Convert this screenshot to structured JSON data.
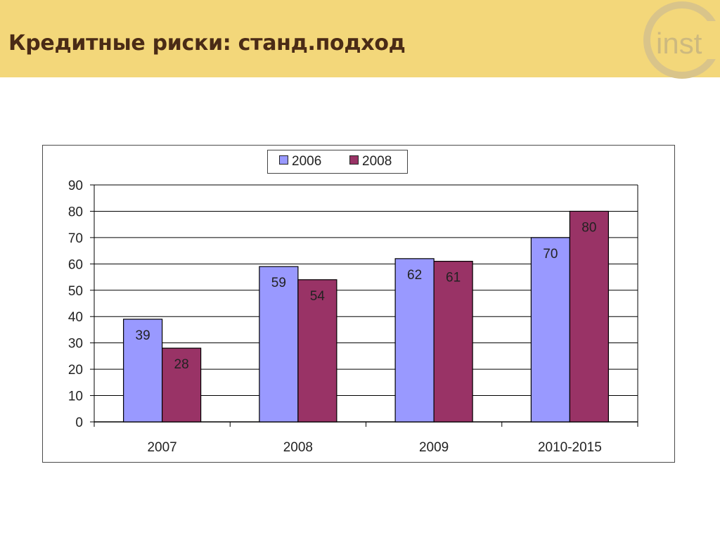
{
  "slide": {
    "title": "Кредитные риски: станд.подход",
    "logo_text": "inst",
    "header_color": "#f3d77a",
    "title_color": "#4a2b16"
  },
  "chart_data": {
    "type": "bar",
    "categories": [
      "2007",
      "2008",
      "2009",
      "2010-2015"
    ],
    "series": [
      {
        "name": "2006",
        "values": [
          39,
          59,
          62,
          70
        ],
        "color": "#9999ff"
      },
      {
        "name": "2008",
        "values": [
          28,
          54,
          61,
          80
        ],
        "color": "#993366"
      }
    ],
    "yticks": [
      0,
      10,
      20,
      30,
      40,
      50,
      60,
      70,
      80,
      90
    ],
    "ylim": [
      0,
      90
    ],
    "grid": true,
    "legend_position": "top-center",
    "data_labels": true
  }
}
